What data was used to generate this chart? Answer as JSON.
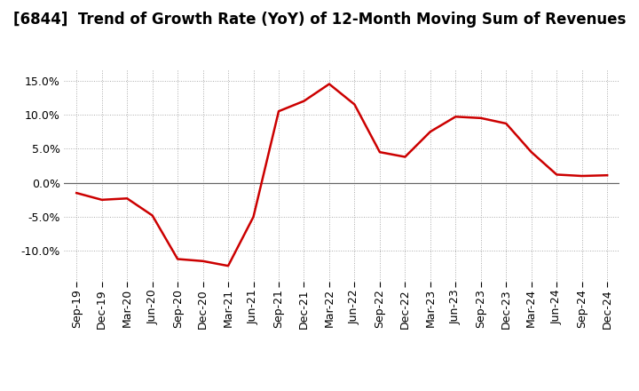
{
  "title": "[6844]  Trend of Growth Rate (YoY) of 12-Month Moving Sum of Revenues",
  "x_labels": [
    "Sep-19",
    "Dec-19",
    "Mar-20",
    "Jun-20",
    "Sep-20",
    "Dec-20",
    "Mar-21",
    "Jun-21",
    "Sep-21",
    "Dec-21",
    "Mar-22",
    "Jun-22",
    "Sep-22",
    "Dec-22",
    "Mar-23",
    "Jun-23",
    "Sep-23",
    "Dec-23",
    "Mar-24",
    "Jun-24",
    "Sep-24",
    "Dec-24"
  ],
  "y_values": [
    -1.5,
    -2.5,
    -2.3,
    -4.8,
    -11.2,
    -11.5,
    -12.2,
    -5.0,
    10.5,
    12.0,
    14.5,
    11.5,
    4.5,
    3.8,
    7.5,
    9.7,
    9.5,
    8.7,
    4.5,
    1.2,
    1.0,
    1.1
  ],
  "line_color": "#cc0000",
  "line_width": 1.8,
  "ylim": [
    -14.5,
    16.5
  ],
  "yticks": [
    -10.0,
    -5.0,
    0.0,
    5.0,
    10.0,
    15.0
  ],
  "ytick_labels": [
    "-10.0%",
    "-5.0%",
    "0.0%",
    "5.0%",
    "10.0%",
    "15.0%"
  ],
  "background_color": "#ffffff",
  "plot_bg_color": "#ffffff",
  "grid_color": "#aaaaaa",
  "title_fontsize": 12,
  "tick_fontsize": 9,
  "zero_line_color": "#666666"
}
